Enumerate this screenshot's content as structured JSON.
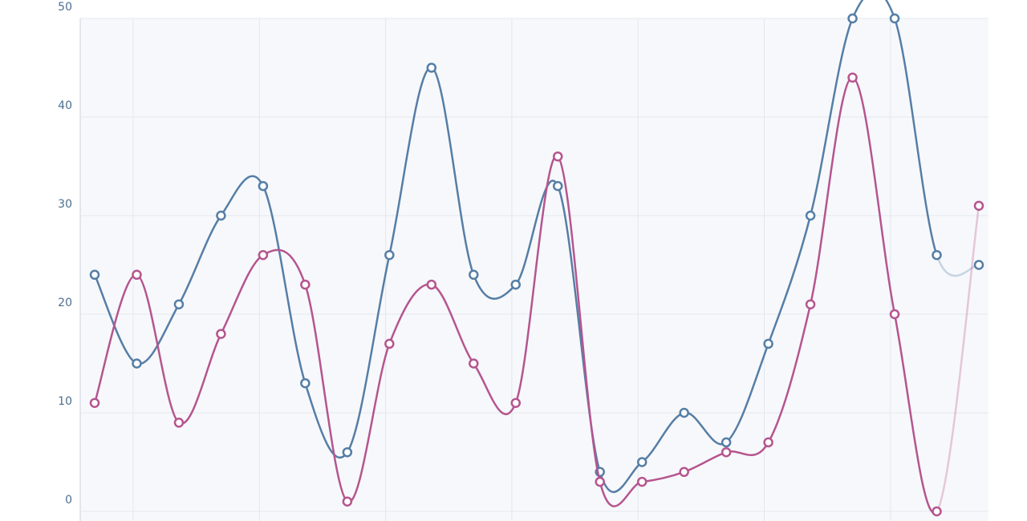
{
  "chart_data": {
    "type": "line",
    "categories": [
      null,
      null,
      null,
      null,
      null,
      null,
      null,
      null,
      null,
      null,
      null,
      null,
      null,
      null,
      null,
      null,
      null,
      null,
      null,
      null,
      null,
      null
    ],
    "series": [
      {
        "color": "#557ea6",
        "values": [
          24,
          15,
          21,
          30,
          33,
          13,
          6,
          26,
          45,
          24,
          23,
          33,
          4,
          5,
          10,
          7,
          17,
          30,
          50,
          50,
          26,
          25
        ]
      },
      {
        "color": "#b5558f",
        "values": [
          11,
          24,
          9,
          18,
          26,
          23,
          1,
          17,
          23,
          15,
          11,
          36,
          3,
          3,
          4,
          6,
          7,
          21,
          44,
          20,
          0,
          31
        ]
      }
    ],
    "ylim": [
      0,
      50
    ],
    "yticks": [
      0,
      10,
      20,
      30,
      40,
      50
    ],
    "grid": true
  }
}
